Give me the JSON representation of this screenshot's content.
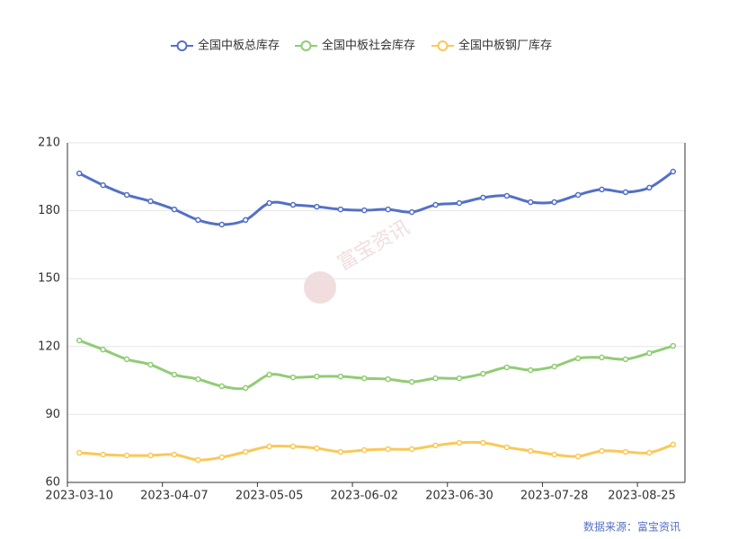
{
  "chart_data": {
    "type": "line",
    "categories": [
      "2023-03-10",
      null,
      null,
      null,
      "2023-04-07",
      null,
      null,
      null,
      "2023-05-05",
      null,
      null,
      null,
      "2023-06-02",
      null,
      null,
      null,
      "2023-06-30",
      null,
      null,
      null,
      "2023-07-28",
      null,
      null,
      null,
      "2023-08-25",
      null
    ],
    "series": [
      {
        "name": "全国中板总库存",
        "color": "#5470c6",
        "values": [
          196.5,
          191.3,
          187,
          184.2,
          180.6,
          175.9,
          173.9,
          175.9,
          183.4,
          182.6,
          181.8,
          180.6,
          180.2,
          180.6,
          179.4,
          182.6,
          183.4,
          185.8,
          186.6,
          183.8,
          183.8,
          187,
          189.4,
          188.2,
          190.2,
          197.3
        ]
      },
      {
        "name": "全国中板社会库存",
        "color": "#91cc75",
        "values": [
          122.7,
          118.7,
          114.4,
          112,
          107.6,
          105.6,
          102.5,
          101.7,
          107.6,
          106.4,
          106.8,
          106.8,
          106,
          105.6,
          104.4,
          106,
          106,
          108,
          110.8,
          109.6,
          111.2,
          114.8,
          115.2,
          114.4,
          117.1,
          120.3
        ]
      },
      {
        "name": "全国中板钢厂库存",
        "color": "#fac858",
        "values": [
          73.1,
          72.3,
          71.9,
          71.9,
          72.3,
          69.9,
          71.1,
          73.5,
          75.9,
          75.9,
          75.1,
          73.5,
          74.3,
          74.7,
          74.7,
          76.3,
          77.5,
          77.5,
          75.5,
          73.9,
          72.3,
          71.5,
          73.9,
          73.5,
          73.1,
          76.7
        ]
      }
    ],
    "ylim": [
      60,
      210
    ],
    "yticks": [
      60,
      90,
      120,
      150,
      180,
      210
    ],
    "grid": true,
    "legend": "top",
    "source": "数据来源：富宝资讯",
    "watermark": "富宝资讯"
  }
}
